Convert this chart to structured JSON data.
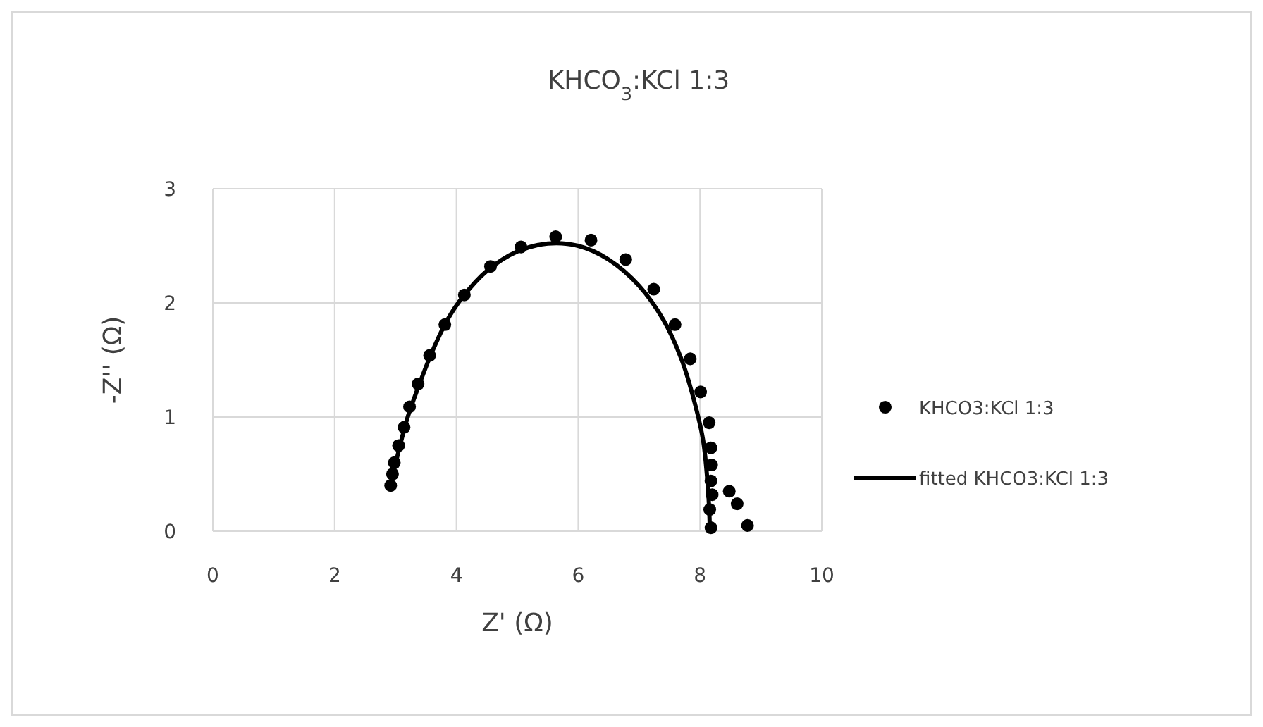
{
  "chart_data": {
    "type": "scatter",
    "title": "KHCO$_{3}$:KCl 1:3",
    "xlabel": "Z' (Ω)",
    "ylabel": "-Z'' (Ω)",
    "xlim": [
      0,
      10
    ],
    "xticks": [
      0,
      2,
      4,
      6,
      8,
      10
    ],
    "ylim": [
      0,
      3
    ],
    "yticks": [
      0,
      1,
      2,
      3
    ],
    "grid": true,
    "legend": "right",
    "series": [
      {
        "name": "KHCO3:KCl 1:3",
        "marker": "circle",
        "color": "#000000",
        "x": [
          2.92,
          2.95,
          2.98,
          3.05,
          3.14,
          3.23,
          3.37,
          3.56,
          3.81,
          4.13,
          4.56,
          5.06,
          5.63,
          6.21,
          6.78,
          7.24,
          7.59,
          7.84,
          8.01,
          8.15,
          8.18,
          8.19,
          8.18,
          8.48,
          8.61,
          8.2,
          8.16,
          8.78,
          8.18
        ],
        "values": [
          0.4,
          0.5,
          0.6,
          0.75,
          0.91,
          1.09,
          1.29,
          1.54,
          1.81,
          2.07,
          2.32,
          2.49,
          2.58,
          2.55,
          2.38,
          2.12,
          1.81,
          1.51,
          1.22,
          0.95,
          0.73,
          0.58,
          0.44,
          0.35,
          0.24,
          0.32,
          0.19,
          0.05,
          0.03
        ]
      },
      {
        "name": "fitted KHCO3:KCl 1:3",
        "type": "line",
        "line_style": "solid",
        "color": "#000000",
        "x": [
          2.92,
          3.05,
          3.2,
          3.4,
          3.6,
          3.85,
          4.1,
          4.5,
          5.0,
          5.5,
          6.0,
          6.5,
          7.0,
          7.4,
          7.7,
          7.9,
          8.05,
          8.12,
          8.15,
          8.16
        ],
        "values": [
          0.4,
          0.7,
          1.0,
          1.3,
          1.57,
          1.85,
          2.05,
          2.28,
          2.45,
          2.52,
          2.5,
          2.38,
          2.15,
          1.85,
          1.5,
          1.15,
          0.8,
          0.45,
          0.2,
          0.05
        ]
      }
    ]
  }
}
